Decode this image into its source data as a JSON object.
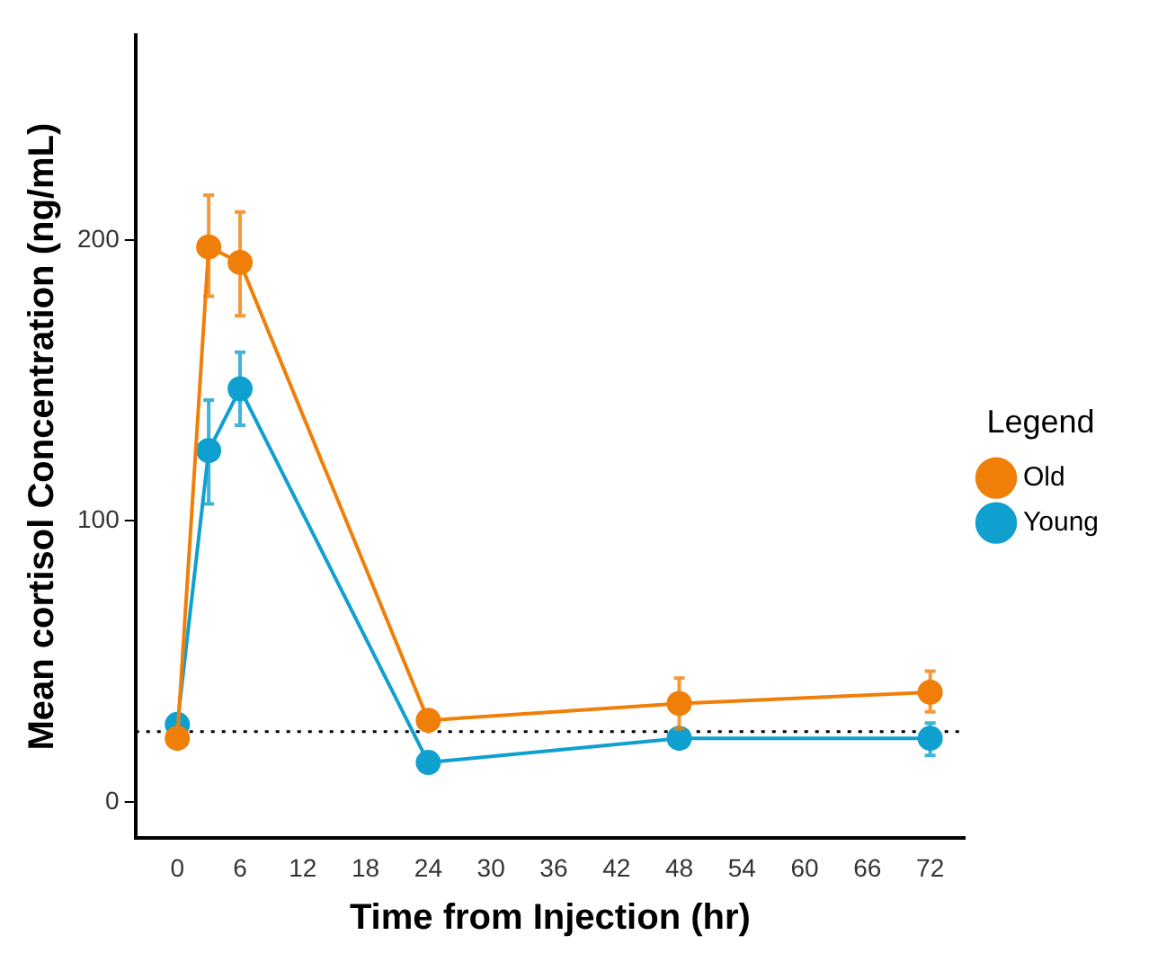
{
  "chart_data": {
    "type": "line",
    "xlabel": "Time from Injection (hr)",
    "ylabel": "Mean cortisol Concentration (ng/mL)",
    "legend_title": "Legend",
    "x": [
      0,
      3,
      6,
      24,
      48,
      72
    ],
    "series": [
      {
        "name": "Old",
        "color": "#f07f09",
        "values": [
          22.6,
          197.5,
          192,
          29,
          35,
          39
        ],
        "errors": [
          null,
          [
            180,
            216
          ],
          [
            173,
            210
          ],
          null,
          [
            26,
            44
          ],
          [
            32,
            46.5
          ]
        ]
      },
      {
        "name": "Young",
        "color": "#0fa0d0",
        "values": [
          27.5,
          125,
          147,
          14,
          22.6,
          22.6
        ],
        "errors": [
          null,
          [
            106,
            143
          ],
          [
            134,
            160
          ],
          null,
          null,
          [
            16.5,
            28
          ]
        ]
      }
    ],
    "xlim": [
      -4,
      75.3
    ],
    "xticks": [
      0,
      6,
      12,
      18,
      24,
      30,
      36,
      42,
      48,
      54,
      60,
      66,
      72
    ],
    "ylim": [
      -13,
      273
    ],
    "yticks": [
      0,
      100,
      200
    ],
    "ref_lines": [
      {
        "axis": "y",
        "value": 25,
        "line_style": "dotted",
        "color": "#000000"
      }
    ],
    "grid": false,
    "legend": "right",
    "marker": "circle",
    "line_style": "solid"
  }
}
